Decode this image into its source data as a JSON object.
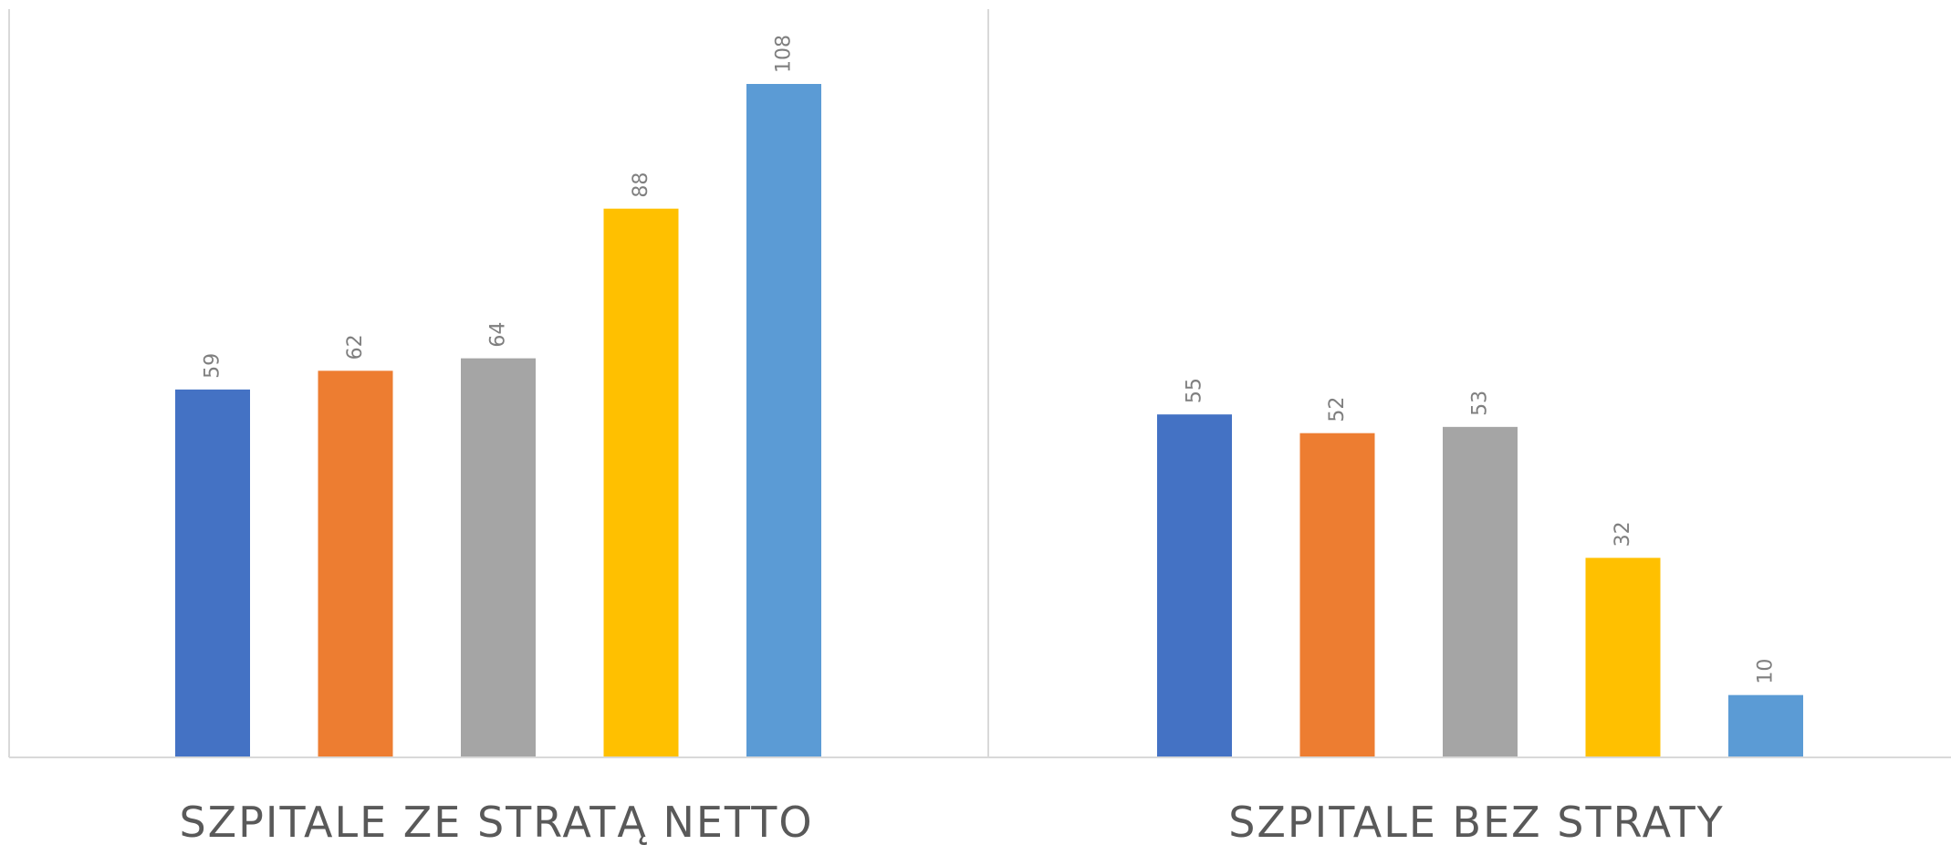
{
  "chart_data": {
    "type": "bar",
    "categories": [
      "SZPITALE ZE STRATĄ NETTO",
      "SZPITALE BEZ STRATY"
    ],
    "series": [
      {
        "values": [
          59,
          55
        ],
        "color": "#4472C4"
      },
      {
        "values": [
          62,
          52
        ],
        "color": "#ED7D31"
      },
      {
        "values": [
          64,
          53
        ],
        "color": "#A5A5A5"
      },
      {
        "values": [
          88,
          32
        ],
        "color": "#FFC000"
      },
      {
        "values": [
          108,
          10
        ],
        "color": "#5B9BD5"
      }
    ],
    "ylim": [
      0,
      120
    ],
    "grid": false,
    "data_labels": true
  }
}
